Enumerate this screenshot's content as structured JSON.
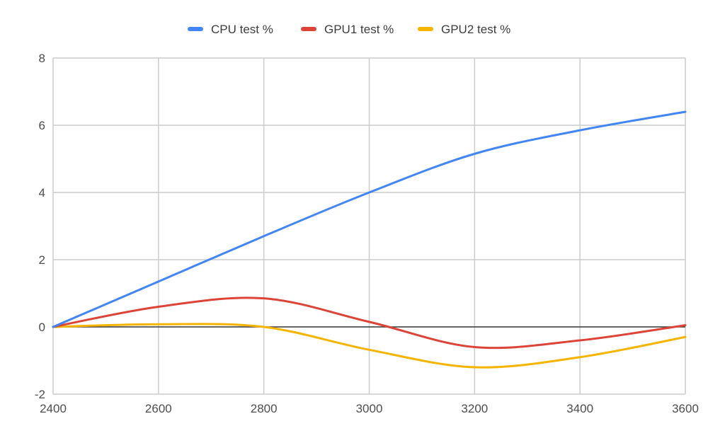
{
  "chart_data": {
    "type": "line",
    "title": "",
    "xlabel": "",
    "ylabel": "",
    "xlim": [
      2400,
      3600
    ],
    "ylim": [
      -2,
      8
    ],
    "xticks": [
      2400,
      2600,
      2800,
      3000,
      3200,
      3400,
      3600
    ],
    "yticks": [
      -2,
      0,
      2,
      4,
      6,
      8
    ],
    "xtick_labels": [
      "2400",
      "2600",
      "2800",
      "3000",
      "3200",
      "3400",
      "3600"
    ],
    "ytick_labels": [
      "-2",
      "0",
      "2",
      "4",
      "6",
      "8"
    ],
    "grid": true,
    "legend_position": "top-center",
    "x": [
      2400,
      2600,
      2800,
      3000,
      3200,
      3400,
      3600
    ],
    "series": [
      {
        "name": "CPU test %",
        "color": "#4285f4",
        "values": [
          0,
          1.35,
          2.7,
          4.0,
          5.15,
          5.85,
          6.4
        ]
      },
      {
        "name": "GPU1 test %",
        "color": "#db4437",
        "values": [
          0,
          0.6,
          0.85,
          0.15,
          -0.6,
          -0.4,
          0.05
        ]
      },
      {
        "name": "GPU2 test %",
        "color": "#f4b400",
        "values": [
          0,
          0.08,
          0.0,
          -0.68,
          -1.2,
          -0.9,
          -0.3
        ]
      }
    ]
  }
}
